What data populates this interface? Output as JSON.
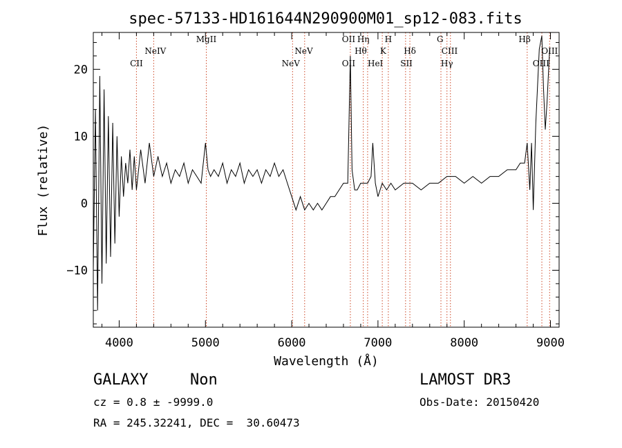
{
  "chart_data": {
    "type": "line",
    "title": "spec-57133-HD161644N290900M01_sp12-083.fits",
    "xlabel": "Wavelength (Å)",
    "ylabel": "Flux (relative)",
    "xlim": [
      3700,
      9100
    ],
    "ylim": [
      -18.5,
      25.5
    ],
    "x_ticks": [
      4000,
      5000,
      6000,
      7000,
      8000,
      9000
    ],
    "y_ticks": [
      -10,
      0,
      10,
      20
    ],
    "line_color": "#000000",
    "marker_color": "#cc4422",
    "grid": false,
    "series": [
      {
        "x": [
          3700,
          3725,
          3750,
          3775,
          3800,
          3825,
          3850,
          3875,
          3900,
          3925,
          3950,
          3975,
          4000,
          4025,
          4050,
          4075,
          4100,
          4125,
          4150,
          4175,
          4200,
          4250,
          4300,
          4350,
          4400,
          4450,
          4500,
          4550,
          4600,
          4650,
          4700,
          4750,
          4800,
          4850,
          4900,
          4950,
          5000,
          5030,
          5060,
          5100,
          5150,
          5200,
          5250,
          5300,
          5350,
          5400,
          5450,
          5500,
          5550,
          5600,
          5650,
          5700,
          5750,
          5800,
          5850,
          5900,
          5950,
          6000,
          6050,
          6100,
          6150,
          6200,
          6250,
          6300,
          6350,
          6400,
          6450,
          6500,
          6550,
          6600,
          6650,
          6680,
          6700,
          6730,
          6760,
          6800,
          6850,
          6880,
          6920,
          6940,
          6970,
          7000,
          7050,
          7100,
          7150,
          7200,
          7300,
          7400,
          7500,
          7600,
          7700,
          7800,
          7900,
          8000,
          8100,
          8200,
          8300,
          8400,
          8500,
          8600,
          8650,
          8700,
          8730,
          8760,
          8780,
          8800,
          8830,
          8870,
          8900,
          8920,
          8940,
          8960,
          8990
        ],
        "y": [
          -10,
          14,
          -16,
          19,
          -12,
          17,
          -9,
          13,
          -8,
          12,
          -6,
          10,
          -2,
          7,
          1,
          6,
          3,
          8,
          2,
          7,
          2,
          8,
          3,
          9,
          4,
          7,
          4,
          6,
          3,
          5,
          4,
          6,
          3,
          5,
          4,
          3,
          9,
          5,
          4,
          5,
          4,
          6,
          3,
          5,
          4,
          6,
          3,
          5,
          4,
          5,
          3,
          5,
          4,
          6,
          4,
          5,
          3,
          1,
          -1,
          1,
          -1,
          0,
          -1,
          0,
          -1,
          0,
          1,
          1,
          2,
          3,
          3,
          22,
          5,
          2,
          2,
          3,
          3,
          3,
          4,
          9,
          3,
          1,
          3,
          2,
          3,
          2,
          3,
          3,
          2,
          3,
          3,
          4,
          4,
          3,
          4,
          3,
          4,
          4,
          5,
          5,
          6,
          6,
          9,
          2,
          9,
          -1,
          12,
          23,
          25,
          17,
          11,
          15,
          23
        ]
      }
    ],
    "line_labels": [
      {
        "label": "CII",
        "x": 4200,
        "row": 2
      },
      {
        "label": "NeIV",
        "x": 4420,
        "row": 1
      },
      {
        "label": "MgII",
        "x": 5010,
        "row": 0
      },
      {
        "label": "NeV",
        "x": 5990,
        "row": 2
      },
      {
        "label": "NeV",
        "x": 6140,
        "row": 1
      },
      {
        "label": "OII",
        "x": 6660,
        "row": 0
      },
      {
        "label": "OII",
        "x": 6660,
        "row": 2
      },
      {
        "label": "Hη",
        "x": 6830,
        "row": 0
      },
      {
        "label": "Hθ",
        "x": 6800,
        "row": 1
      },
      {
        "label": "HeI",
        "x": 6970,
        "row": 2
      },
      {
        "label": "H",
        "x": 7120,
        "row": 0
      },
      {
        "label": "K",
        "x": 7060,
        "row": 1
      },
      {
        "label": "SII",
        "x": 7330,
        "row": 2
      },
      {
        "label": "Hδ",
        "x": 7370,
        "row": 1
      },
      {
        "label": "G",
        "x": 7720,
        "row": 0
      },
      {
        "label": "CIII",
        "x": 7830,
        "row": 1
      },
      {
        "label": "Hγ",
        "x": 7800,
        "row": 2
      },
      {
        "label": "Hβ",
        "x": 8700,
        "row": 0
      },
      {
        "label": "OIII",
        "x": 8990,
        "row": 1
      },
      {
        "label": "OIII",
        "x": 8890,
        "row": 2
      }
    ],
    "marker_lines": [
      4200,
      4400,
      5010,
      6010,
      6150,
      6680,
      6830,
      6880,
      7050,
      7120,
      7320,
      7370,
      7730,
      7800,
      7840,
      8730,
      8900,
      8990
    ]
  },
  "footer": {
    "object_class": "GALAXY",
    "subclass": "Non",
    "survey": "LAMOST DR3",
    "cz_text": "cz = 0.8 ± -9999.0",
    "obs_date_text": "Obs-Date: 20150420",
    "coords_text": "RA = 245.32241, DEC =  30.60473"
  }
}
